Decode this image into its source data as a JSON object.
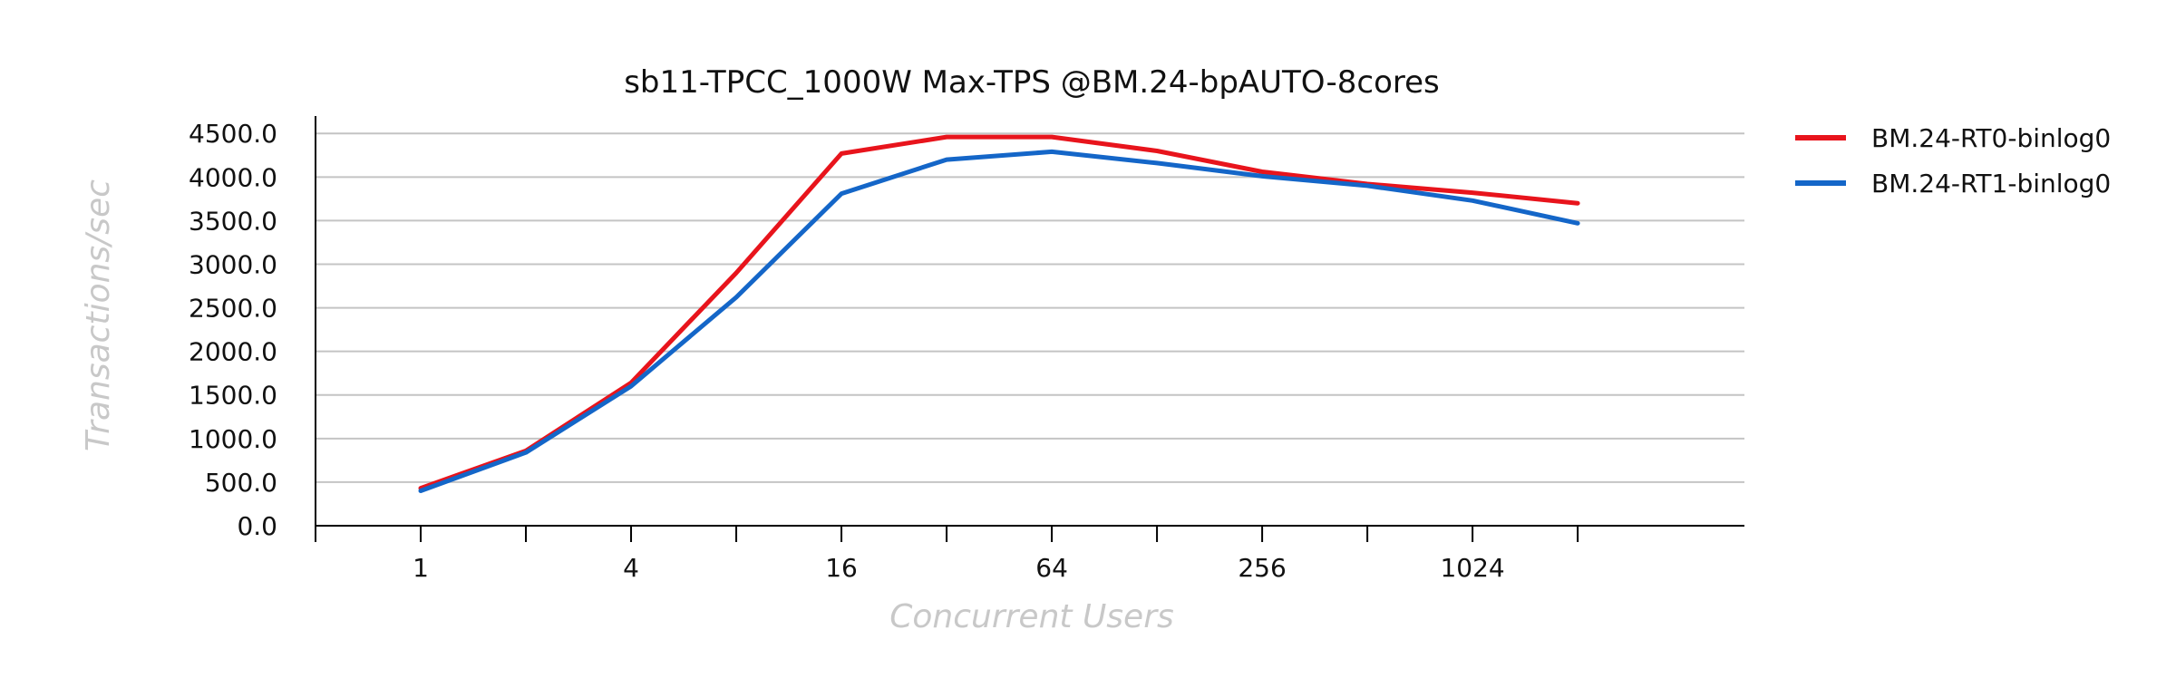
{
  "chart_data": {
    "type": "line",
    "title": "sb11-TPCC_1000W Max-TPS @BM.24-bpAUTO-8cores",
    "xlabel": "Concurrent Users",
    "ylabel": "Transactions/sec",
    "x_scale": "log2",
    "x": [
      1,
      2,
      4,
      8,
      16,
      32,
      64,
      128,
      256,
      512,
      1024,
      2048
    ],
    "x_tick_labels": [
      "1",
      "4",
      "16",
      "64",
      "256",
      "1024"
    ],
    "x_tick_label_values": [
      1,
      4,
      16,
      64,
      256,
      1024
    ],
    "x_minor_ticks": [
      0.5,
      1,
      2,
      4,
      8,
      16,
      32,
      64,
      128,
      256,
      512,
      1024,
      2048
    ],
    "xlim": [
      0.5,
      6144
    ],
    "y_tick_labels": [
      "0.0",
      "500.0",
      "1000.0",
      "1500.0",
      "2000.0",
      "2500.0",
      "3000.0",
      "3500.0",
      "4000.0",
      "4500.0"
    ],
    "y_ticks": [
      0,
      500,
      1000,
      1500,
      2000,
      2500,
      3000,
      3500,
      4000,
      4500
    ],
    "ylim": [
      0,
      4700
    ],
    "grid": true,
    "legend_position": "top-right outside",
    "series": [
      {
        "name": "BM.24-RT0-binlog0",
        "color": "#e8141c",
        "values": [
          430,
          860,
          1640,
          2900,
          4270,
          4460,
          4460,
          4300,
          4060,
          3920,
          3820,
          3700
        ]
      },
      {
        "name": "BM.24-RT1-binlog0",
        "color": "#1466c8",
        "values": [
          400,
          840,
          1600,
          2620,
          3810,
          4200,
          4290,
          4160,
          4010,
          3900,
          3730,
          3470
        ]
      }
    ]
  }
}
